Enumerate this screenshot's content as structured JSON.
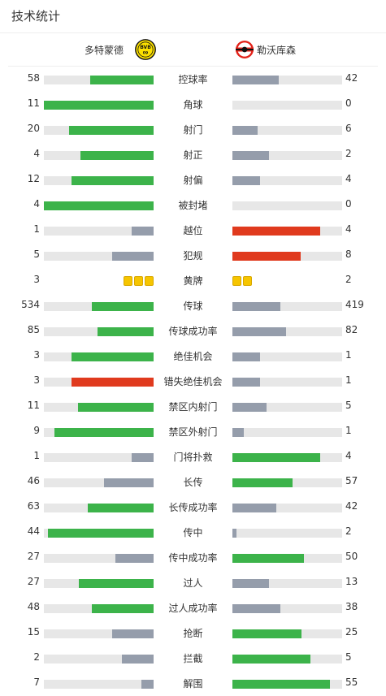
{
  "header": {
    "title": "技术统计"
  },
  "teams": {
    "home": "多特蒙德",
    "away": "勒沃库森"
  },
  "colors": {
    "win": "#3cb34a",
    "lose": "#959dab",
    "foul": "#e03a1e",
    "track": "#e7e7e7",
    "card": "#f6c500"
  },
  "stats": [
    {
      "label": "控球率",
      "home": "58",
      "away": "42",
      "home_bar": 0.58,
      "away_bar": 0.42,
      "home_color": "win",
      "away_color": "lose"
    },
    {
      "label": "角球",
      "home": "11",
      "away": "0",
      "home_bar": 1.0,
      "away_bar": 0.0,
      "home_color": "win",
      "away_color": "lose"
    },
    {
      "label": "射门",
      "home": "20",
      "away": "6",
      "home_bar": 0.77,
      "away_bar": 0.23,
      "home_color": "win",
      "away_color": "lose"
    },
    {
      "label": "射正",
      "home": "4",
      "away": "2",
      "home_bar": 0.67,
      "away_bar": 0.33,
      "home_color": "win",
      "away_color": "lose"
    },
    {
      "label": "射偏",
      "home": "12",
      "away": "4",
      "home_bar": 0.75,
      "away_bar": 0.25,
      "home_color": "win",
      "away_color": "lose"
    },
    {
      "label": "被封堵",
      "home": "4",
      "away": "0",
      "home_bar": 1.0,
      "away_bar": 0.0,
      "home_color": "win",
      "away_color": "lose"
    },
    {
      "label": "越位",
      "home": "1",
      "away": "4",
      "home_bar": 0.2,
      "away_bar": 0.8,
      "home_color": "lose",
      "away_color": "foul"
    },
    {
      "label": "犯规",
      "home": "5",
      "away": "8",
      "home_bar": 0.38,
      "away_bar": 0.62,
      "home_color": "lose",
      "away_color": "foul"
    },
    {
      "label": "黄牌",
      "home": "3",
      "away": "2",
      "home_cards": 3,
      "away_cards": 2
    },
    {
      "label": "传球",
      "home": "534",
      "away": "419",
      "home_bar": 0.56,
      "away_bar": 0.44,
      "home_color": "win",
      "away_color": "lose"
    },
    {
      "label": "传球成功率",
      "home": "85",
      "away": "82",
      "home_bar": 0.51,
      "away_bar": 0.49,
      "home_color": "win",
      "away_color": "lose"
    },
    {
      "label": "绝佳机会",
      "home": "3",
      "away": "1",
      "home_bar": 0.75,
      "away_bar": 0.25,
      "home_color": "win",
      "away_color": "lose"
    },
    {
      "label": "错失绝佳机会",
      "home": "3",
      "away": "1",
      "home_bar": 0.75,
      "away_bar": 0.25,
      "home_color": "foul",
      "away_color": "lose"
    },
    {
      "label": "禁区内射门",
      "home": "11",
      "away": "5",
      "home_bar": 0.69,
      "away_bar": 0.31,
      "home_color": "win",
      "away_color": "lose"
    },
    {
      "label": "禁区外射门",
      "home": "9",
      "away": "1",
      "home_bar": 0.9,
      "away_bar": 0.1,
      "home_color": "win",
      "away_color": "lose"
    },
    {
      "label": "门将扑救",
      "home": "1",
      "away": "4",
      "home_bar": 0.2,
      "away_bar": 0.8,
      "home_color": "lose",
      "away_color": "win"
    },
    {
      "label": "长传",
      "home": "46",
      "away": "57",
      "home_bar": 0.45,
      "away_bar": 0.55,
      "home_color": "lose",
      "away_color": "win"
    },
    {
      "label": "长传成功率",
      "home": "63",
      "away": "42",
      "home_bar": 0.6,
      "away_bar": 0.4,
      "home_color": "win",
      "away_color": "lose"
    },
    {
      "label": "传中",
      "home": "44",
      "away": "2",
      "home_bar": 0.96,
      "away_bar": 0.04,
      "home_color": "win",
      "away_color": "lose"
    },
    {
      "label": "传中成功率",
      "home": "27",
      "away": "50",
      "home_bar": 0.35,
      "away_bar": 0.65,
      "home_color": "lose",
      "away_color": "win"
    },
    {
      "label": "过人",
      "home": "27",
      "away": "13",
      "home_bar": 0.68,
      "away_bar": 0.33,
      "home_color": "win",
      "away_color": "lose"
    },
    {
      "label": "过人成功率",
      "home": "48",
      "away": "38",
      "home_bar": 0.56,
      "away_bar": 0.44,
      "home_color": "win",
      "away_color": "lose"
    },
    {
      "label": "抢断",
      "home": "15",
      "away": "25",
      "home_bar": 0.38,
      "away_bar": 0.63,
      "home_color": "lose",
      "away_color": "win"
    },
    {
      "label": "拦截",
      "home": "2",
      "away": "5",
      "home_bar": 0.29,
      "away_bar": 0.71,
      "home_color": "lose",
      "away_color": "win"
    },
    {
      "label": "解围",
      "home": "7",
      "away": "55",
      "home_bar": 0.11,
      "away_bar": 0.89,
      "home_color": "lose",
      "away_color": "win"
    }
  ]
}
